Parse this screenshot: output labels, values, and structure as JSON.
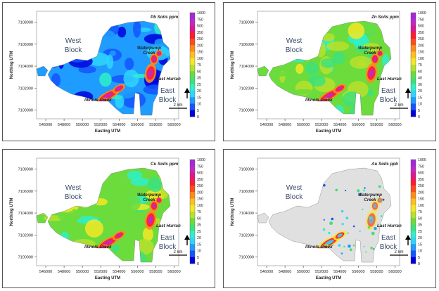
{
  "colors": {
    "scale": [
      "#0000dd",
      "#1555ff",
      "#1f9cff",
      "#2fd5ff",
      "#2ff0c8",
      "#3fe07a",
      "#6bdc3c",
      "#b8e02c",
      "#f3e825",
      "#ffbf1e",
      "#ff8a1c",
      "#ff4d1a",
      "#ff1a36",
      "#e0168a",
      "#c028c8",
      "#a528d8"
    ],
    "background": "#ffffff",
    "land_gray": "#e0e0e0"
  },
  "shared": {
    "y_axis_label": "Northing UTM",
    "x_axis_label": "Easting UTM",
    "y_ticks": [
      "7108000",
      "7106000",
      "7104000",
      "7102000",
      "7100000"
    ],
    "x_ticks": [
      "546000",
      "548000",
      "550000",
      "552000",
      "554000",
      "556000",
      "558000",
      "560000"
    ],
    "scale_bar_label": "2 km",
    "legend_ticks": [
      "1000",
      "750",
      "500",
      "350",
      "250",
      "200",
      "150",
      "100",
      "75",
      "50",
      "35",
      "25",
      "20",
      "15",
      "10",
      "5",
      "0"
    ],
    "labels": {
      "west_block_line1": "West",
      "west_block_line2": "Block",
      "east_block_line1": "East",
      "east_block_line2": "Block",
      "waterpump_line1": "Waterpump",
      "waterpump_line2": "Creek",
      "last_hurrah": "Last Hurrah",
      "illinois_creek": "Illinois Creek"
    }
  },
  "panels": [
    {
      "title": "Pb Soils ppm",
      "legend_ticks": [
        "1000",
        "750",
        "500",
        "350",
        "250",
        "200",
        "150",
        "100",
        "75",
        "50",
        "35",
        "25",
        "20",
        "15",
        "10",
        "5",
        "0"
      ],
      "dominant_level": 2
    },
    {
      "title": "Zn Soils ppm",
      "legend_ticks": [
        "1000",
        "750",
        "500",
        "350",
        "250",
        "200",
        "150",
        "100",
        "75",
        "60",
        "40",
        "30",
        "20",
        "15",
        "10",
        "5",
        "0"
      ],
      "dominant_level": 6
    },
    {
      "title": "Cu Soils ppm",
      "legend_ticks": [
        "1000",
        "750",
        "500",
        "350",
        "250",
        "200",
        "150",
        "100",
        "75",
        "50",
        "35",
        "25",
        "20",
        "15",
        "10",
        "5",
        "0"
      ],
      "dominant_level": 6
    },
    {
      "title": "Au Soils ppb",
      "legend_ticks": [
        "1000",
        "750",
        "500",
        "350",
        "250",
        "200",
        "150",
        "100",
        "75",
        "50",
        "35",
        "25",
        "20",
        "15",
        "10",
        "5",
        "0"
      ],
      "dominant_level": -1
    }
  ]
}
